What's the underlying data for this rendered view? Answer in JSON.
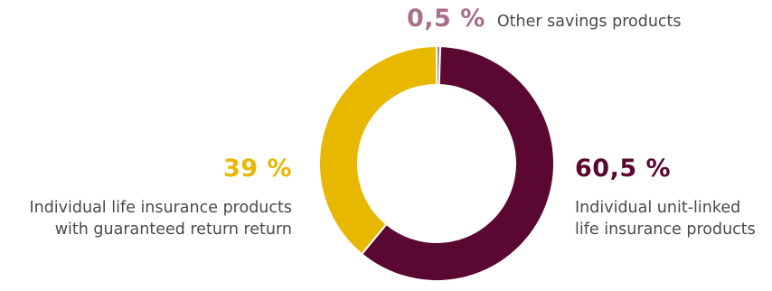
{
  "chart_data": {
    "type": "pie",
    "donut": true,
    "categories": [
      "Other savings products",
      "Individual unit-linked life insurance products",
      "Individual life insurance products with guaranteed return return"
    ],
    "values": [
      0.5,
      60.5,
      39
    ],
    "value_labels": [
      "0,5 %",
      "60,5 %",
      "39 %"
    ],
    "colors": [
      "#a8718b",
      "#5a0732",
      "#e8b800"
    ],
    "start_angle_deg": 0,
    "direction": "clockwise",
    "legend": "none"
  },
  "labels": {
    "other": {
      "value": "0,5 %",
      "text": "Other savings products"
    },
    "unit_linked": {
      "value": "60,5 %",
      "line1": "Individual unit-linked",
      "line2": "life insurance products"
    },
    "guaranteed": {
      "value": "39 %",
      "line1": "Individual life insurance products",
      "line2": "with guaranteed return return"
    }
  },
  "text_colors": {
    "other": "#a8718b",
    "unit_linked": "#5a0732",
    "guaranteed": "#e8b800",
    "description": "#4a4a4a"
  }
}
